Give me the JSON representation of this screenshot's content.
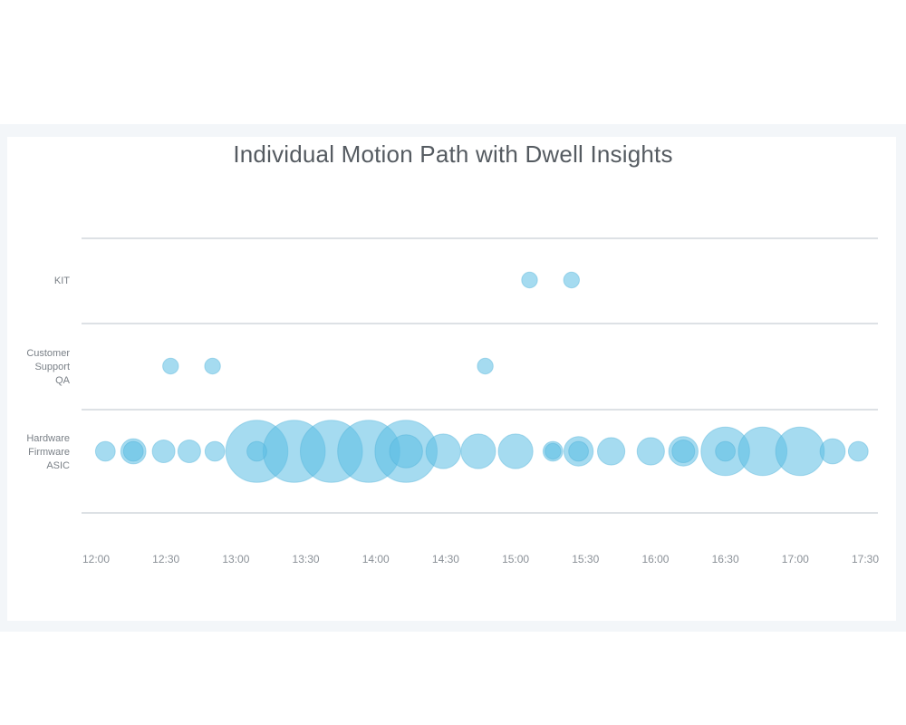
{
  "chart_data": {
    "type": "scatter",
    "title": "Individual Motion Path with Dwell Insights",
    "xlabel": "",
    "ylabel": "",
    "x_ticks": [
      "12:00",
      "12:30",
      "13:00",
      "13:30",
      "14:00",
      "14:30",
      "15:00",
      "15:30",
      "16:00",
      "16:30",
      "17:00",
      "17:30"
    ],
    "xlim_minutes": [
      0,
      330
    ],
    "categories": [
      {
        "key": "kit",
        "label": [
          "KIT"
        ]
      },
      {
        "key": "qa",
        "label": [
          "Customer",
          "Support",
          "QA"
        ]
      },
      {
        "key": "hw",
        "label": [
          "Hardware",
          "Firmware",
          "ASIC"
        ]
      }
    ],
    "points": [
      {
        "cat": "kit",
        "time": "15:06",
        "dwell": 1
      },
      {
        "cat": "kit",
        "time": "15:24",
        "dwell": 1
      },
      {
        "cat": "qa",
        "time": "12:32",
        "dwell": 1
      },
      {
        "cat": "qa",
        "time": "12:50",
        "dwell": 1
      },
      {
        "cat": "qa",
        "time": "14:47",
        "dwell": 1
      },
      {
        "cat": "hw",
        "time": "12:04",
        "dwell": 2
      },
      {
        "cat": "hw",
        "time": "12:16",
        "dwell": 4
      },
      {
        "cat": "hw",
        "time": "12:16",
        "dwell": 2
      },
      {
        "cat": "hw",
        "time": "12:29",
        "dwell": 3
      },
      {
        "cat": "hw",
        "time": "12:40",
        "dwell": 3
      },
      {
        "cat": "hw",
        "time": "12:51",
        "dwell": 2
      },
      {
        "cat": "hw",
        "time": "13:09",
        "dwell": 35
      },
      {
        "cat": "hw",
        "time": "13:09",
        "dwell": 2
      },
      {
        "cat": "hw",
        "time": "13:25",
        "dwell": 35
      },
      {
        "cat": "hw",
        "time": "13:41",
        "dwell": 35
      },
      {
        "cat": "hw",
        "time": "13:57",
        "dwell": 35
      },
      {
        "cat": "hw",
        "time": "14:13",
        "dwell": 35
      },
      {
        "cat": "hw",
        "time": "14:13",
        "dwell": 8
      },
      {
        "cat": "hw",
        "time": "14:29",
        "dwell": 9
      },
      {
        "cat": "hw",
        "time": "14:44",
        "dwell": 9
      },
      {
        "cat": "hw",
        "time": "15:00",
        "dwell": 9
      },
      {
        "cat": "hw",
        "time": "15:16",
        "dwell": 2
      },
      {
        "cat": "hw",
        "time": "15:16",
        "dwell": 1
      },
      {
        "cat": "hw",
        "time": "15:27",
        "dwell": 6
      },
      {
        "cat": "hw",
        "time": "15:27",
        "dwell": 2
      },
      {
        "cat": "hw",
        "time": "15:41",
        "dwell": 5
      },
      {
        "cat": "hw",
        "time": "15:58",
        "dwell": 5
      },
      {
        "cat": "hw",
        "time": "16:12",
        "dwell": 6
      },
      {
        "cat": "hw",
        "time": "16:12",
        "dwell": 3
      },
      {
        "cat": "hw",
        "time": "16:30",
        "dwell": 20
      },
      {
        "cat": "hw",
        "time": "16:30",
        "dwell": 2
      },
      {
        "cat": "hw",
        "time": "16:46",
        "dwell": 20
      },
      {
        "cat": "hw",
        "time": "17:02",
        "dwell": 20
      },
      {
        "cat": "hw",
        "time": "17:16",
        "dwell": 4
      },
      {
        "cat": "hw",
        "time": "17:27",
        "dwell": 2
      }
    ],
    "grid": true,
    "colors": {
      "bubble": "#5bbde3",
      "bubble_stroke": "#4aaed6",
      "grid": "#dde1e5"
    }
  }
}
